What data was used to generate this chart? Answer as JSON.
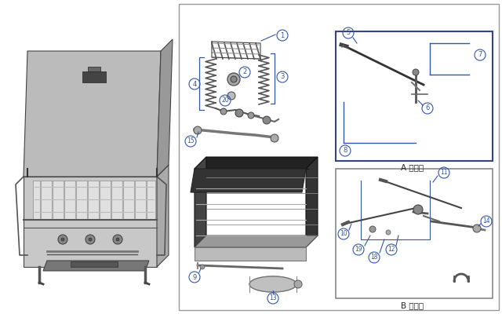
{
  "bg_color": "#ffffff",
  "panel_bg": "#ffffff",
  "panel_border": "#aaaaaa",
  "line_color": "#3355aa",
  "dark_color": "#222222",
  "gray1": "#888888",
  "gray2": "#aaaaaa",
  "gray3": "#555555",
  "gray4": "#333333",
  "label_A": "A 詳細部",
  "label_B": "B 詳細部",
  "fig_width": 6.4,
  "fig_height": 4.0,
  "dpi": 100
}
